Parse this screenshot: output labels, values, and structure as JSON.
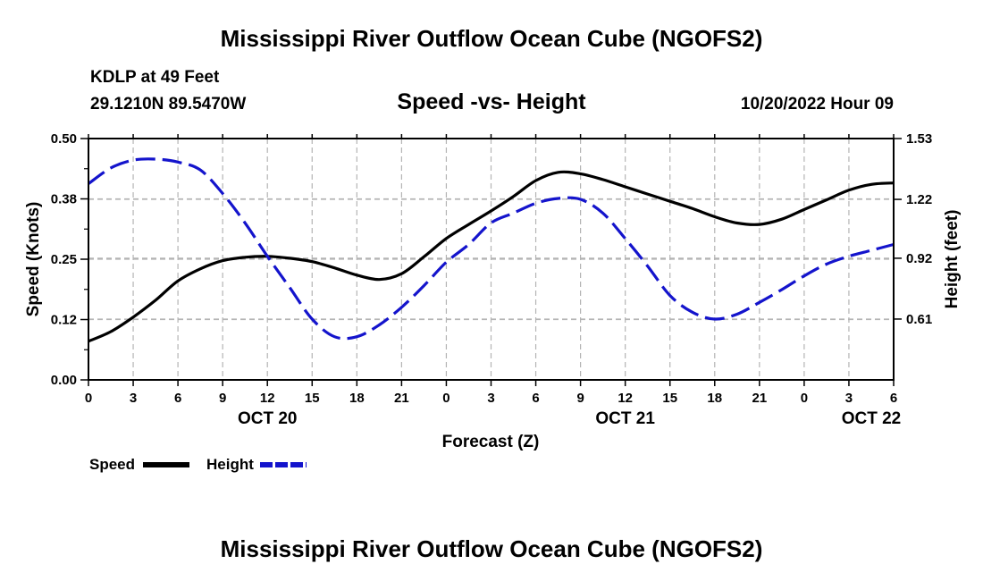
{
  "page": {
    "title": "Mississippi River Outflow Ocean Cube (NGOFS2)",
    "title_repeat": "Mississippi River Outflow Ocean Cube (NGOFS2)",
    "station": "KDLP at 49 Feet",
    "coords": "29.1210N  89.5470W",
    "subtitle": "Speed -vs- Height",
    "datetime": "10/20/2022 Hour 09"
  },
  "chart_data": {
    "type": "line",
    "title": "Speed -vs- Height",
    "xlabel": "Forecast (Z)",
    "ylabel": "Speed (Knots)",
    "y2label": "Height (feet)",
    "xlim": [
      0,
      54
    ],
    "ylim": [
      0,
      0.5
    ],
    "y2lim": [
      0.3,
      1.53
    ],
    "x_ticks": [
      0,
      3,
      6,
      9,
      12,
      15,
      18,
      21,
      24,
      27,
      30,
      33,
      36,
      39,
      42,
      45,
      48,
      51,
      54
    ],
    "x_tick_labels": [
      "0",
      "3",
      "6",
      "9",
      "12",
      "15",
      "18",
      "21",
      "0",
      "3",
      "6",
      "9",
      "12",
      "15",
      "18",
      "21",
      "0",
      "3",
      "6"
    ],
    "date_labels": [
      {
        "x": 12,
        "label": "OCT 20"
      },
      {
        "x": 36,
        "label": "OCT 21"
      },
      {
        "x": 52.5,
        "label": "OCT 22"
      }
    ],
    "y_ticks": [
      0,
      0.125,
      0.25,
      0.375,
      0.5
    ],
    "y_tick_labels": [
      "0.00",
      "0.12",
      "0.25",
      "0.38",
      "0.50"
    ],
    "y2_ticks": [
      0.61,
      0.92,
      1.22,
      1.53
    ],
    "y2_tick_labels": [
      "0.61",
      "0.92",
      "1.22",
      "1.53"
    ],
    "grid": true,
    "legend": "bottom-left",
    "colors": {
      "speed": "#000000",
      "height": "#1414cc",
      "grid": "#b4b4b4"
    },
    "series": [
      {
        "name": "Speed",
        "axis": "left",
        "style": "solid",
        "x": [
          0,
          1.5,
          3,
          4.5,
          6,
          7.5,
          9,
          10.5,
          12,
          13.5,
          15,
          16.5,
          18,
          19.5,
          21,
          22.5,
          24,
          25.5,
          27,
          28.5,
          30,
          31.5,
          33,
          34.5,
          36,
          37.5,
          39,
          40.5,
          42,
          43.5,
          45,
          46.5,
          48,
          49.5,
          51,
          52.5,
          54
        ],
        "values": [
          0.08,
          0.1,
          0.13,
          0.165,
          0.205,
          0.23,
          0.247,
          0.254,
          0.256,
          0.252,
          0.245,
          0.232,
          0.217,
          0.208,
          0.22,
          0.255,
          0.293,
          0.322,
          0.35,
          0.38,
          0.413,
          0.43,
          0.427,
          0.415,
          0.4,
          0.385,
          0.37,
          0.355,
          0.338,
          0.325,
          0.322,
          0.333,
          0.353,
          0.373,
          0.393,
          0.405,
          0.408
        ]
      },
      {
        "name": "Height",
        "axis": "right",
        "style": "dashed",
        "x": [
          0,
          1.5,
          3,
          4.5,
          6,
          7.5,
          9,
          10.5,
          12,
          13.5,
          15,
          16.5,
          18,
          19.5,
          21,
          22.5,
          24,
          25.5,
          27,
          28.5,
          30,
          31.5,
          33,
          34.5,
          36,
          37.5,
          39,
          40.5,
          42,
          43.5,
          45,
          46.5,
          48,
          49.5,
          51,
          52.5,
          54
        ],
        "values": [
          1.3,
          1.38,
          1.42,
          1.425,
          1.41,
          1.37,
          1.25,
          1.1,
          0.93,
          0.77,
          0.61,
          0.52,
          0.52,
          0.58,
          0.67,
          0.78,
          0.9,
          0.99,
          1.1,
          1.15,
          1.2,
          1.225,
          1.22,
          1.15,
          1.02,
          0.88,
          0.73,
          0.645,
          0.61,
          0.635,
          0.695,
          0.76,
          0.83,
          0.89,
          0.93,
          0.96,
          0.99
        ]
      }
    ]
  }
}
